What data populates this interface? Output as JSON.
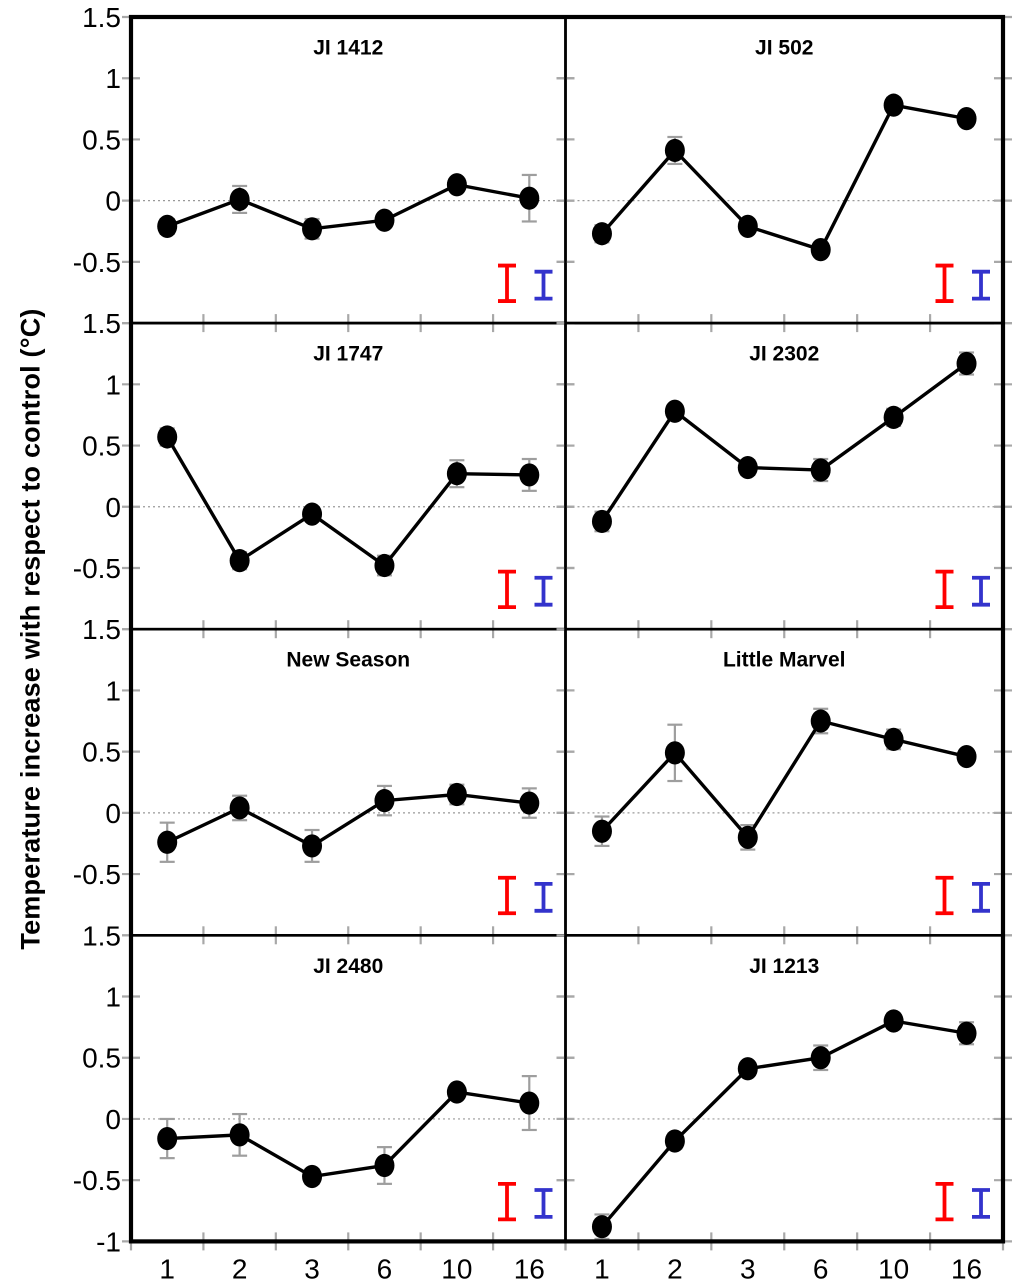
{
  "figure": {
    "y_axis_title": "Temperature increase with respect to control (°C)",
    "colors": {
      "marker": "#000000",
      "line": "#000000",
      "border": "#000000",
      "tick": "#a8a8a8",
      "error_bar": "#9e9e9e",
      "zero_line": "#999999",
      "red_lsd": "#ff0000",
      "blue_lsd": "#3333cc"
    }
  },
  "chart_data": {
    "type": "line",
    "layout": {
      "rows": 4,
      "cols": 2,
      "legend_position": "none",
      "grid": "zero-dotted-line-only"
    },
    "x_categories": [
      "1",
      "2",
      "3",
      "6",
      "10",
      "16"
    ],
    "ylim": [
      -1,
      1.5
    ],
    "y_ticks": [
      1.5,
      1,
      0.5,
      0,
      -0.5,
      -1
    ],
    "y_tick_labels": [
      "1.5",
      "1",
      "0.5",
      "0",
      "-0.5",
      "-1"
    ],
    "xlabel": "",
    "ylabel": "Temperature increase with respect to control (°C)",
    "panels": [
      {
        "title": "JI 1412",
        "values": [
          -0.21,
          0.01,
          -0.23,
          -0.16,
          0.13,
          0.02
        ],
        "errors": [
          0.06,
          0.11,
          0.08,
          0.05,
          0.05,
          0.19
        ]
      },
      {
        "title": "JI 502",
        "values": [
          -0.27,
          0.41,
          -0.21,
          -0.4,
          0.78,
          0.67
        ],
        "errors": [
          0.07,
          0.11,
          0.05,
          0.05,
          0.06,
          0.05
        ]
      },
      {
        "title": "JI 1747",
        "values": [
          0.57,
          -0.44,
          -0.06,
          -0.48,
          0.27,
          0.26
        ],
        "errors": [
          0.07,
          0.07,
          0.04,
          0.08,
          0.11,
          0.13
        ]
      },
      {
        "title": "JI 2302",
        "values": [
          -0.12,
          0.78,
          0.32,
          0.3,
          0.73,
          1.17
        ],
        "errors": [
          0.08,
          0.05,
          0.06,
          0.09,
          0.07,
          0.09
        ]
      },
      {
        "title": "New Season",
        "values": [
          -0.24,
          0.04,
          -0.27,
          0.1,
          0.15,
          0.08
        ],
        "errors": [
          0.16,
          0.1,
          0.13,
          0.12,
          0.08,
          0.12
        ]
      },
      {
        "title": "Little Marvel",
        "values": [
          -0.15,
          0.49,
          -0.2,
          0.75,
          0.6,
          0.46
        ],
        "errors": [
          0.12,
          0.23,
          0.1,
          0.1,
          0.08,
          0.05
        ]
      },
      {
        "title": "JI 2480",
        "values": [
          -0.16,
          -0.13,
          -0.47,
          -0.38,
          0.22,
          0.13
        ],
        "errors": [
          0.16,
          0.17,
          0.06,
          0.15,
          0.05,
          0.22
        ]
      },
      {
        "title": "JI 1213",
        "values": [
          -0.88,
          -0.18,
          0.41,
          0.5,
          0.8,
          0.7
        ],
        "errors": [
          0.1,
          0.06,
          0.05,
          0.1,
          0.06,
          0.09
        ]
      }
    ],
    "lsd_bars": {
      "red": {
        "color": "#ff0000",
        "from": -0.82,
        "to": -0.53
      },
      "blue": {
        "color": "#3333cc",
        "from": -0.8,
        "to": -0.58
      }
    }
  }
}
